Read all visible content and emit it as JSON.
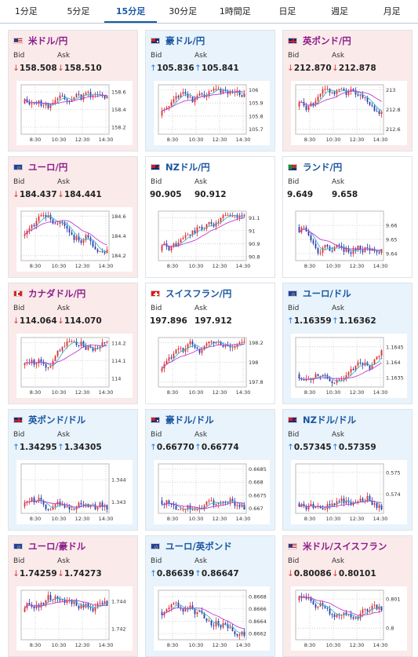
{
  "tabs": [
    {
      "label": "1分足",
      "active": false
    },
    {
      "label": "5分足",
      "active": false
    },
    {
      "label": "15分足",
      "active": true
    },
    {
      "label": "30分足",
      "active": false
    },
    {
      "label": "1時間足",
      "active": false
    },
    {
      "label": "日足",
      "active": false
    },
    {
      "label": "週足",
      "active": false
    },
    {
      "label": "月足",
      "active": false
    }
  ],
  "bid_label": "Bid",
  "ask_label": "Ask",
  "pairs": [
    {
      "name": "米ドル/円",
      "flag": "us",
      "trend": "down",
      "bid": "158.508",
      "ask": "158.510",
      "chart_data": {
        "type": "candlestick",
        "x_ticks": [
          "8:30",
          "10:30",
          "12:30",
          "14:30"
        ],
        "y_ticks": [
          "158.6",
          "158.4",
          "158.2"
        ],
        "ylim": [
          158.12,
          158.68
        ],
        "seed": 11,
        "bias": 0.1
      }
    },
    {
      "name": "豪ドル/円",
      "flag": "au",
      "trend": "up",
      "bid": "105.836",
      "ask": "105.841",
      "chart_data": {
        "type": "candlestick",
        "x_ticks": [
          "8:30",
          "10:30",
          "12:30",
          "14:30"
        ],
        "y_ticks": [
          "106",
          "105.9",
          "105.8",
          "105.7"
        ],
        "ylim": [
          105.66,
          106.04
        ],
        "seed": 23,
        "bias": -0.1
      }
    },
    {
      "name": "英ポンド/円",
      "flag": "gb",
      "trend": "down",
      "bid": "212.870",
      "ask": "212.878",
      "chart_data": {
        "type": "candlestick",
        "x_ticks": [
          "8:30",
          "10:30",
          "12:30",
          "14:30"
        ],
        "y_ticks": [
          "213",
          "212.8",
          "212.6"
        ],
        "ylim": [
          212.55,
          213.05
        ],
        "seed": 5,
        "bias": 0.05
      }
    },
    {
      "name": "ユーロ/円",
      "flag": "eu",
      "trend": "down",
      "bid": "184.437",
      "ask": "184.441",
      "chart_data": {
        "type": "candlestick",
        "x_ticks": [
          "8:30",
          "10:30",
          "12:30",
          "14:30"
        ],
        "y_ticks": [
          "184.6",
          "184.4",
          "184.2"
        ],
        "ylim": [
          184.15,
          184.65
        ],
        "seed": 37,
        "bias": 0
      }
    },
    {
      "name": "NZドル/円",
      "flag": "nz",
      "trend": "flat",
      "bid": "90.905",
      "ask": "90.912",
      "chart_data": {
        "type": "candlestick",
        "x_ticks": [
          "8:30",
          "10:30",
          "12:30",
          "14:30"
        ],
        "y_ticks": [
          "91.1",
          "91",
          "90.9",
          "90.8"
        ],
        "ylim": [
          90.77,
          91.15
        ],
        "seed": 41,
        "bias": -0.25
      }
    },
    {
      "name": "ランド/円",
      "flag": "za",
      "trend": "flat",
      "bid": "9.649",
      "ask": "9.658",
      "chart_data": {
        "type": "candlestick",
        "x_ticks": [
          "8:30",
          "10:30",
          "12:30",
          "14:30"
        ],
        "y_ticks": [
          "9.66",
          "9.65",
          "9.64"
        ],
        "ylim": [
          9.635,
          9.67
        ],
        "seed": 53,
        "bias": 0.15
      }
    },
    {
      "name": "カナダドル/円",
      "flag": "ca",
      "trend": "down",
      "bid": "114.064",
      "ask": "114.070",
      "chart_data": {
        "type": "candlestick",
        "x_ticks": [
          "8:30",
          "10:30",
          "12:30",
          "14:30"
        ],
        "y_ticks": [
          "114.2",
          "114.1",
          "114"
        ],
        "ylim": [
          113.95,
          114.23
        ],
        "seed": 61,
        "bias": -0.05
      }
    },
    {
      "name": "スイスフラン/円",
      "flag": "ch",
      "trend": "flat",
      "bid": "197.896",
      "ask": "197.912",
      "chart_data": {
        "type": "candlestick",
        "x_ticks": [
          "8:30",
          "10:30",
          "12:30",
          "14:30"
        ],
        "y_ticks": [
          "198.2",
          "198",
          "197.8"
        ],
        "ylim": [
          197.75,
          198.25
        ],
        "seed": 73,
        "bias": -0.15
      }
    },
    {
      "name": "ユーロ/ドル",
      "flag": "eu",
      "trend": "up",
      "bid": "1.16359",
      "ask": "1.16362",
      "chart_data": {
        "type": "candlestick",
        "x_ticks": [
          "8:30",
          "10:30",
          "12:30",
          "14:30"
        ],
        "y_ticks": [
          "1.1645",
          "1.164",
          "1.1635"
        ],
        "ylim": [
          1.1632,
          1.1648
        ],
        "seed": 83,
        "bias": -0.2
      }
    },
    {
      "name": "英ポンド/ドル",
      "flag": "gb",
      "trend": "up",
      "bid": "1.34295",
      "ask": "1.34305",
      "chart_data": {
        "type": "candlestick",
        "x_ticks": [
          "8:30",
          "10:30",
          "12:30",
          "14:30"
        ],
        "y_ticks": [
          "1.344",
          "1.343"
        ],
        "ylim": [
          1.3425,
          1.3447
        ],
        "seed": 97,
        "bias": -0.3
      }
    },
    {
      "name": "豪ドル/ドル",
      "flag": "au",
      "trend": "up",
      "bid": "0.66770",
      "ask": "0.66774",
      "chart_data": {
        "type": "candlestick",
        "x_ticks": [
          "8:30",
          "10:30",
          "12:30",
          "14:30"
        ],
        "y_ticks": [
          "0.6685",
          "0.668",
          "0.6675",
          "0.667"
        ],
        "ylim": [
          0.6668,
          0.6687
        ],
        "seed": 101,
        "bias": -0.2
      }
    },
    {
      "name": "NZドル/ドル",
      "flag": "nz",
      "trend": "up",
      "bid": "0.57345",
      "ask": "0.57359",
      "chart_data": {
        "type": "candlestick",
        "x_ticks": [
          "8:30",
          "10:30",
          "12:30",
          "14:30"
        ],
        "y_ticks": [
          "0.575",
          "0.574"
        ],
        "ylim": [
          0.5731,
          0.5754
        ],
        "seed": 113,
        "bias": -0.25
      }
    },
    {
      "name": "ユーロ/豪ドル",
      "flag": "eu",
      "trend": "down",
      "bid": "1.74259",
      "ask": "1.74273",
      "chart_data": {
        "type": "candlestick",
        "x_ticks": [
          "8:30",
          "10:30",
          "12:30",
          "14:30"
        ],
        "y_ticks": [
          "1.744",
          "1.742"
        ],
        "ylim": [
          1.7412,
          1.7448
        ],
        "seed": 127,
        "bias": 0.05
      }
    },
    {
      "name": "ユーロ/英ポンド",
      "flag": "eu",
      "trend": "up",
      "bid": "0.86639",
      "ask": "0.86647",
      "chart_data": {
        "type": "candlestick",
        "x_ticks": [
          "8:30",
          "10:30",
          "12:30",
          "14:30"
        ],
        "y_ticks": [
          "0.8668",
          "0.8666",
          "0.8664",
          "0.8662"
        ],
        "ylim": [
          0.8661,
          0.8669
        ],
        "seed": 131,
        "bias": 0.05
      }
    },
    {
      "name": "米ドル/スイスフラン",
      "flag": "us",
      "trend": "down",
      "bid": "0.80086",
      "ask": "0.80101",
      "chart_data": {
        "type": "candlestick",
        "x_ticks": [
          "8:30",
          "10:30",
          "12:30",
          "14:30"
        ],
        "y_ticks": [
          "0.801",
          "0.8"
        ],
        "ylim": [
          0.7996,
          0.8013
        ],
        "seed": 139,
        "bias": 0.25
      }
    }
  ],
  "colors": {
    "up_candle": "#e03030",
    "down_candle": "#2a3fae",
    "ma_short": "#35b8c8",
    "ma_long": "#c03cd0",
    "grid": "#c8c8c8"
  }
}
